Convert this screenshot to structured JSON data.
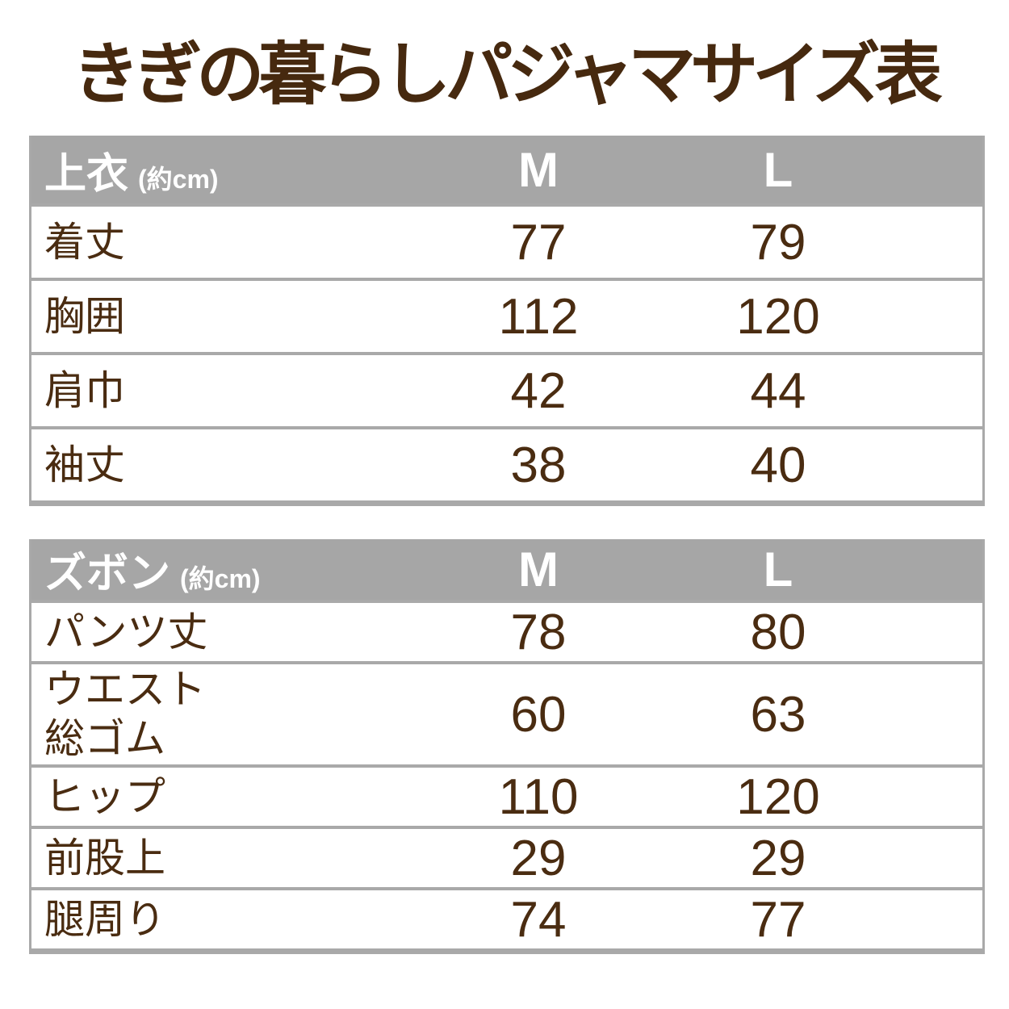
{
  "title": "きぎの暮らしパジャマサイズ表",
  "colors": {
    "title_brown": "#46290f",
    "text_brown": "#4a2c11",
    "header_gray": "#a6a6a6",
    "border_gray": "#a9a9a9",
    "background": "#ffffff",
    "header_text": "#ffffff"
  },
  "tables": [
    {
      "header": {
        "label": "上衣",
        "unit": "(約cm)",
        "col_m": "M",
        "col_l": "L"
      },
      "rows": [
        {
          "label": "着丈",
          "m": "77",
          "l": "79"
        },
        {
          "label": "胸囲",
          "m": "112",
          "l": "120"
        },
        {
          "label": "肩巾",
          "m": "42",
          "l": "44"
        },
        {
          "label": "袖丈",
          "m": "38",
          "l": "40"
        }
      ]
    },
    {
      "header": {
        "label": "ズボン",
        "unit": "(約cm)",
        "col_m": "M",
        "col_l": "L"
      },
      "rows": [
        {
          "label": "パンツ丈",
          "m": "78",
          "l": "80"
        },
        {
          "label": "ウエスト",
          "label2": "総ゴム",
          "m": "60",
          "l": "63"
        },
        {
          "label": "ヒップ",
          "m": "110",
          "l": "120"
        },
        {
          "label": "前股上",
          "m": "29",
          "l": "29"
        },
        {
          "label": "腿周り",
          "m": "74",
          "l": "77"
        }
      ]
    }
  ],
  "chart_data": [
    {
      "type": "table",
      "title": "上衣 (約cm)",
      "columns": [
        "",
        "M",
        "L"
      ],
      "rows": [
        [
          "着丈",
          77,
          79
        ],
        [
          "胸囲",
          112,
          120
        ],
        [
          "肩巾",
          42,
          44
        ],
        [
          "袖丈",
          38,
          40
        ]
      ]
    },
    {
      "type": "table",
      "title": "ズボン (約cm)",
      "columns": [
        "",
        "M",
        "L"
      ],
      "rows": [
        [
          "パンツ丈",
          78,
          80
        ],
        [
          "ウエスト総ゴム",
          60,
          63
        ],
        [
          "ヒップ",
          110,
          120
        ],
        [
          "前股上",
          29,
          29
        ],
        [
          "腿周り",
          74,
          77
        ]
      ]
    }
  ]
}
